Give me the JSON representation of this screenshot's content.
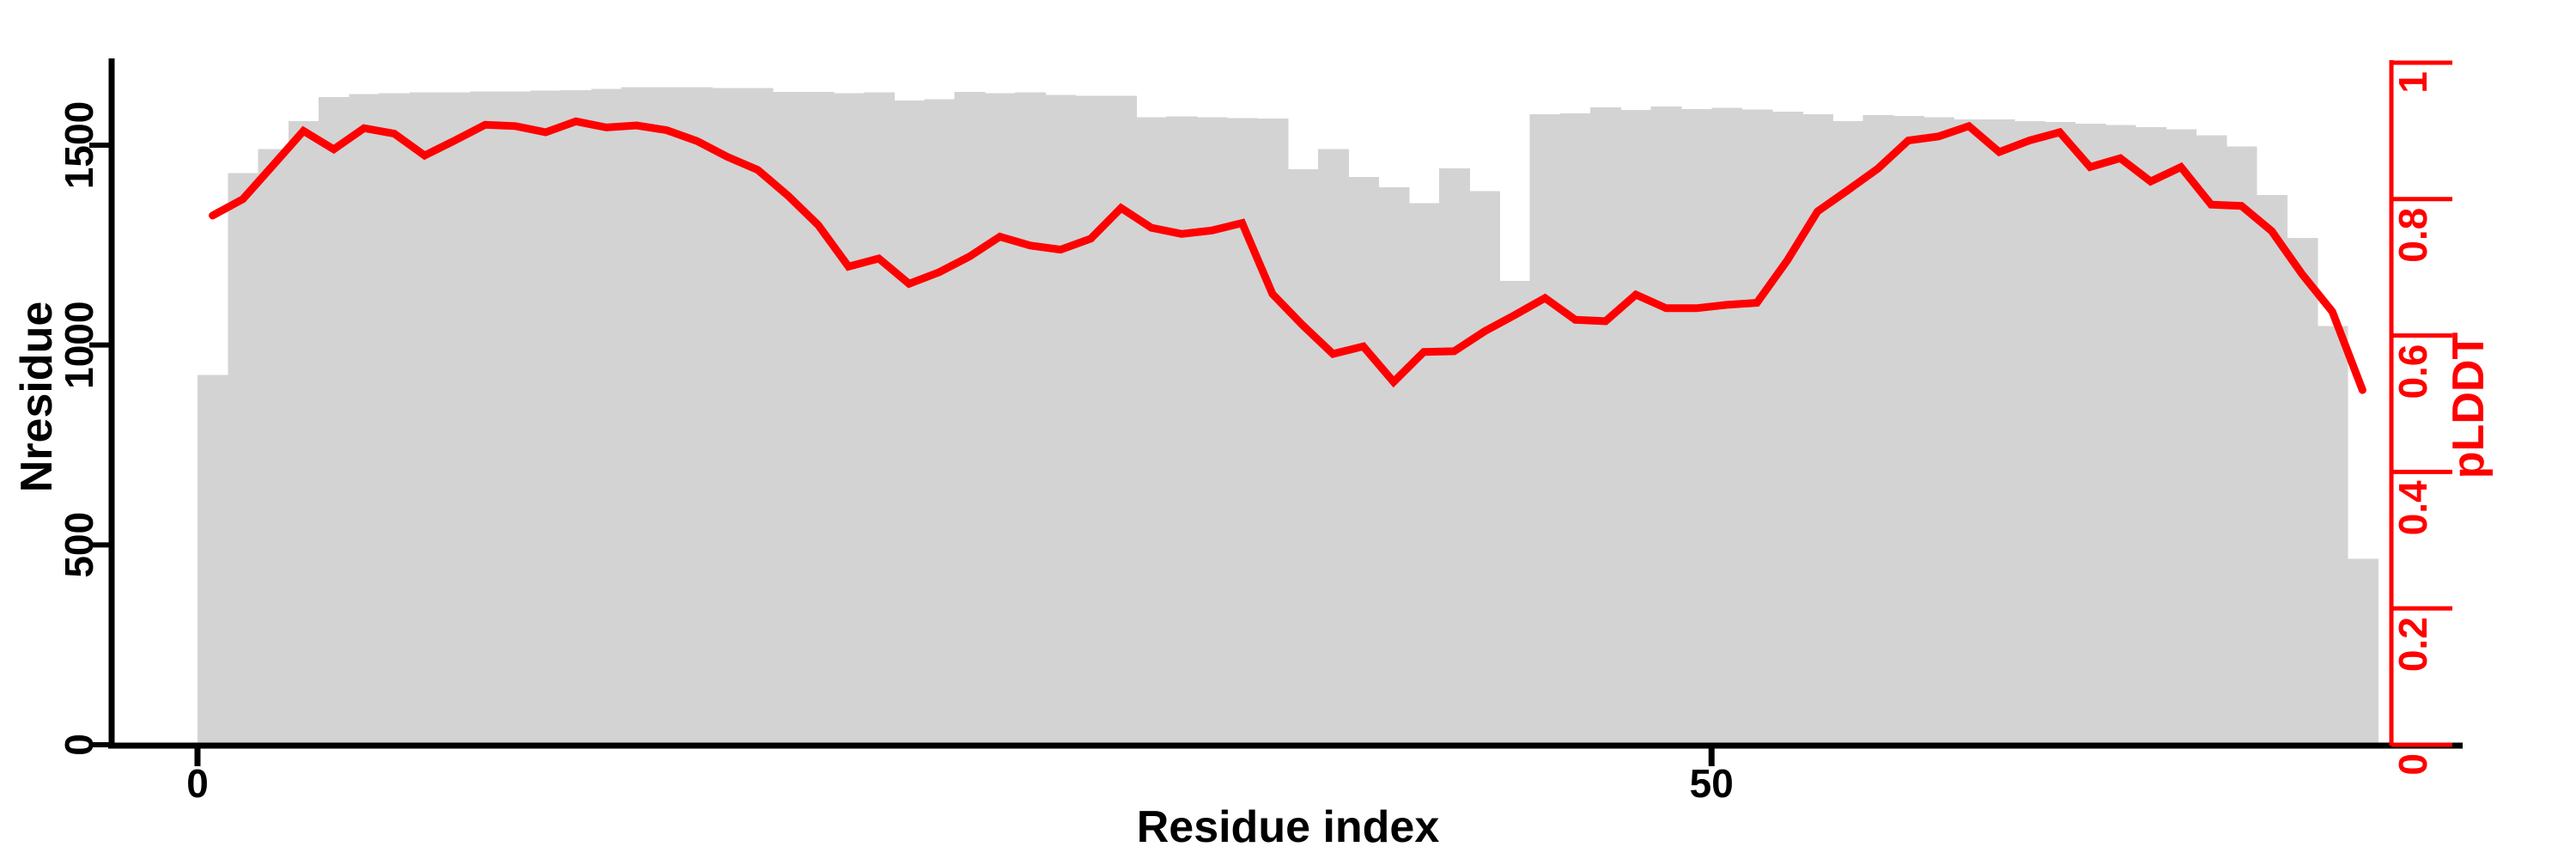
{
  "figure": {
    "background": "#ffffff",
    "x_axis": {
      "label": "Residue index",
      "tick_labels": [
        "0",
        "50"
      ],
      "tick_values": [
        0,
        50
      ]
    },
    "y_left_axis": {
      "label": "Nresidue",
      "tick_labels": [
        "0",
        "500",
        "1000",
        "1500"
      ],
      "tick_values": [
        0,
        500,
        1000,
        1500
      ],
      "color": "#000000"
    },
    "y_right_axis": {
      "label": "pLDDT",
      "tick_labels": [
        "0",
        "0.2",
        "0.4",
        "0.6",
        "0.8",
        "1"
      ],
      "tick_values": [
        0,
        0.2,
        0.4,
        0.6,
        0.8,
        1
      ],
      "color": "#ff0000"
    },
    "colors": {
      "bar": "#d3d3d3",
      "line": "#ff0000",
      "axis": "#000000"
    }
  },
  "chart_data": {
    "type": "bar+line",
    "title": "",
    "xlabel": "Residue index",
    "ylabel_left": "Nresidue",
    "ylabel_right": "pLDDT",
    "xlim": [
      -2.8,
      72.5
    ],
    "ylim_left": [
      0,
      1715
    ],
    "ylim_right": [
      0,
      1
    ],
    "grid": false,
    "legend": "none",
    "x": [
      1,
      2,
      3,
      4,
      5,
      6,
      7,
      8,
      9,
      10,
      11,
      12,
      13,
      14,
      15,
      16,
      17,
      18,
      19,
      20,
      21,
      22,
      23,
      24,
      25,
      26,
      27,
      28,
      29,
      30,
      31,
      32,
      33,
      34,
      35,
      36,
      37,
      38,
      39,
      40,
      41,
      42,
      43,
      44,
      45,
      46,
      47,
      48,
      49,
      50,
      51,
      52,
      53,
      54,
      55,
      56,
      57,
      58,
      59,
      60,
      61,
      62,
      63,
      64,
      65,
      66,
      67,
      68,
      69,
      70,
      71,
      72
    ],
    "series": [
      {
        "name": "Nresidue",
        "type": "bar",
        "axis": "left",
        "color": "#d3d3d3",
        "values": [
          925,
          1430,
          1490,
          1560,
          1620,
          1628,
          1630,
          1632,
          1632,
          1634,
          1634,
          1636,
          1638,
          1641,
          1645,
          1645,
          1645,
          1643,
          1643,
          1633,
          1633,
          1630,
          1632,
          1612,
          1615,
          1633,
          1630,
          1632,
          1626,
          1624,
          1624,
          1570,
          1572,
          1570,
          1568,
          1567,
          1440,
          1490,
          1420,
          1395,
          1355,
          1442,
          1385,
          1160,
          1577,
          1580,
          1595,
          1588,
          1597,
          1590,
          1593,
          1589,
          1584,
          1577,
          1560,
          1575,
          1573,
          1570,
          1565,
          1565,
          1560,
          1558,
          1554,
          1550,
          1545,
          1540,
          1525,
          1497,
          1375,
          1268,
          1048,
          465
        ]
      },
      {
        "name": "pLDDT",
        "type": "line",
        "axis": "right",
        "color": "#ff0000",
        "values": [
          0.776,
          0.8,
          0.85,
          0.9,
          0.873,
          0.904,
          0.896,
          0.864,
          0.886,
          0.909,
          0.907,
          0.898,
          0.914,
          0.905,
          0.908,
          0.901,
          0.885,
          0.862,
          0.843,
          0.805,
          0.762,
          0.701,
          0.713,
          0.676,
          0.693,
          0.716,
          0.745,
          0.732,
          0.726,
          0.742,
          0.787,
          0.758,
          0.749,
          0.754,
          0.765,
          0.661,
          0.615,
          0.573,
          0.584,
          0.532,
          0.576,
          0.577,
          0.606,
          0.63,
          0.655,
          0.623,
          0.621,
          0.66,
          0.64,
          0.64,
          0.645,
          0.648,
          0.71,
          0.782,
          0.813,
          0.845,
          0.886,
          0.892,
          0.907,
          0.869,
          0.886,
          0.898,
          0.847,
          0.86,
          0.826,
          0.847,
          0.792,
          0.79,
          0.753,
          0.69,
          0.635,
          0.52
        ]
      }
    ]
  }
}
